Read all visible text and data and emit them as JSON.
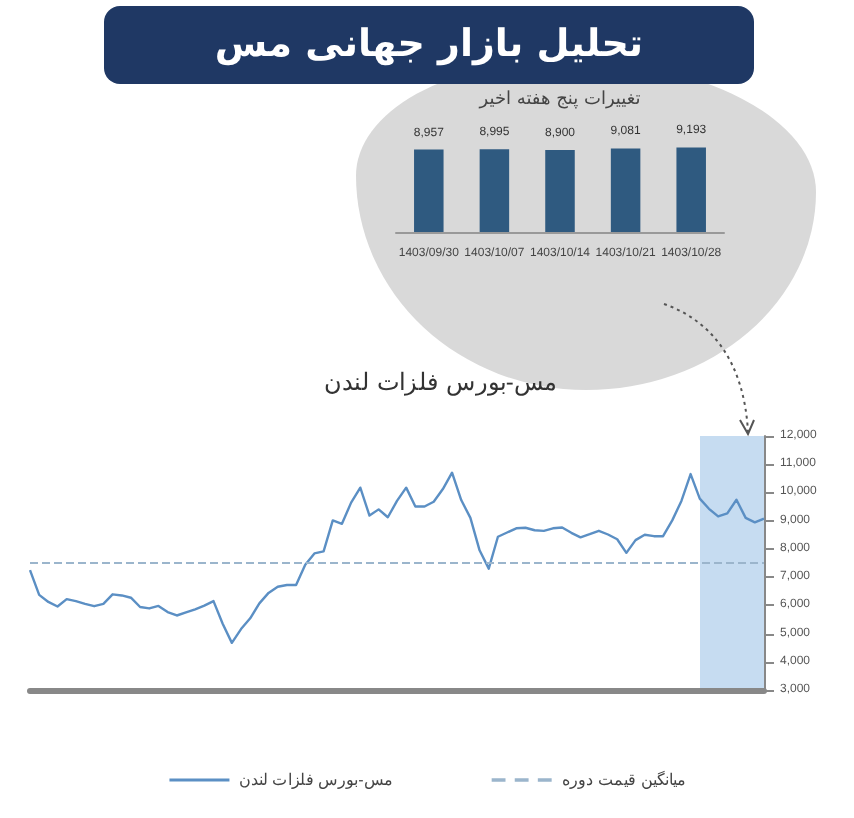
{
  "chart_data": [
    {
      "type": "bar",
      "title": "تحلیل بازار جهانی مس",
      "subtitle": "تغییرات پنج هفته اخیر",
      "categories": [
        "1403/09/30",
        "1403/10/07",
        "1403/10/14",
        "1403/10/21",
        "1403/10/28"
      ],
      "values": [
        8957,
        8995,
        8900,
        9081,
        9193
      ],
      "color": "#2f5a80",
      "data_labels": true,
      "value_labels": [
        "8,957",
        "8,995",
        "8,900",
        "9,081",
        "9,193"
      ]
    },
    {
      "type": "line",
      "title": "مس-بورس فلزات لندن",
      "tick_labels": "y",
      "legend": "bottom",
      "line_style": "solid",
      "categories": [
        null,
        null,
        null,
        null,
        null,
        null,
        null,
        null,
        null,
        null,
        null,
        null,
        null,
        null,
        null,
        null,
        null,
        null,
        null,
        null,
        null,
        null,
        null,
        null,
        null,
        null,
        null,
        null,
        null,
        null,
        null,
        null,
        null,
        null,
        null,
        null,
        null,
        null,
        null,
        null,
        null,
        null,
        null,
        null,
        null,
        null,
        null,
        null,
        null,
        null,
        null,
        null,
        null,
        null,
        null,
        null,
        null,
        null,
        null,
        null,
        null,
        null,
        null,
        null,
        null,
        null,
        null,
        null,
        null,
        null,
        null,
        null,
        null,
        null,
        null,
        null,
        null,
        null,
        null,
        null,
        null
      ],
      "series": [
        {
          "name": "مس-بورس فلزات لندن",
          "color": "#5b8fc4",
          "values": [
            7250,
            6370,
            6120,
            5960,
            6220,
            6150,
            6050,
            5970,
            6050,
            6390,
            6350,
            6270,
            5940,
            5890,
            5980,
            5760,
            5640,
            5750,
            5860,
            5990,
            6150,
            5350,
            4670,
            5160,
            5540,
            6070,
            6440,
            6660,
            6720,
            6720,
            7440,
            7840,
            7910,
            9010,
            8890,
            9640,
            10170,
            9180,
            9400,
            9120,
            9700,
            10170,
            9500,
            9500,
            9670,
            10120,
            10700,
            9730,
            9100,
            7950,
            7300,
            8430,
            8580,
            8730,
            8750,
            8660,
            8640,
            8730,
            8760,
            8570,
            8410,
            8520,
            8640,
            8510,
            8340,
            7860,
            8310,
            8500,
            8450,
            8450,
            9010,
            9700,
            10650,
            9780,
            9420,
            9150,
            9260,
            9740,
            9100,
            8940,
            9070
          ]
        }
      ],
      "ylim": [
        3000,
        12000
      ],
      "yticks": [
        {
          "value": 3000,
          "label": "3,000"
        },
        {
          "value": 4000,
          "label": "4,000"
        },
        {
          "value": 5000,
          "label": "5,000"
        },
        {
          "value": 6000,
          "label": "6,000"
        },
        {
          "value": 7000,
          "label": "7,000"
        },
        {
          "value": 8000,
          "label": "8,000"
        },
        {
          "value": 9000,
          "label": "9,000"
        },
        {
          "value": 10000,
          "label": "10,000"
        },
        {
          "value": 11000,
          "label": "11,000"
        },
        {
          "value": 12000,
          "label": "12,000"
        }
      ],
      "ref_lines": [
        {
          "axis": "y",
          "value": 7500,
          "label": "میانگین قیمت دوره",
          "color": "#9bb5cc",
          "line_style": "dashed"
        }
      ]
    }
  ]
}
